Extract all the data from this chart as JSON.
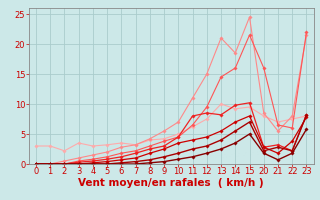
{
  "background_color": "#cce8e8",
  "grid_color": "#aacccc",
  "xlim": [
    -0.5,
    23.5
  ],
  "ylim": [
    0,
    26
  ],
  "xtick_positions": [
    0,
    1,
    2,
    3,
    4,
    5,
    6,
    7,
    8,
    9,
    10,
    11,
    12,
    13,
    14,
    15,
    20,
    21,
    22,
    23
  ],
  "xtick_labels": [
    "0",
    "1",
    "2",
    "3",
    "4",
    "5",
    "6",
    "7",
    "8",
    "9",
    "10",
    "11",
    "12",
    "13",
    "14",
    "15",
    "20",
    "21",
    "22",
    "23"
  ],
  "yticks": [
    0,
    5,
    10,
    15,
    20,
    25
  ],
  "xlabel": "Vent moyen/en rafales  ( km/h )",
  "xlabel_color": "#cc0000",
  "xlabel_fontsize": 7.5,
  "tick_color": "#cc0000",
  "tick_fontsize": 6,
  "lines": [
    {
      "x": [
        0,
        1,
        2,
        3,
        4,
        5,
        6,
        7,
        8,
        9,
        10,
        11,
        12,
        13,
        14,
        15,
        20,
        21,
        22,
        23
      ],
      "y": [
        3.0,
        3.0,
        2.2,
        3.5,
        3.0,
        3.2,
        3.5,
        3.2,
        4.0,
        4.2,
        5.0,
        6.2,
        7.5,
        10.0,
        9.2,
        9.5,
        8.0,
        7.0,
        7.5,
        8.0
      ],
      "color": "#ffaaaa",
      "lw": 0.8,
      "marker": "D",
      "ms": 1.8
    },
    {
      "x": [
        0,
        1,
        2,
        3,
        4,
        5,
        6,
        7,
        8,
        9,
        10,
        11,
        12,
        13,
        14,
        15,
        20,
        21,
        22,
        23
      ],
      "y": [
        0.0,
        0.0,
        0.5,
        1.0,
        1.5,
        2.0,
        2.8,
        3.2,
        4.2,
        5.5,
        7.0,
        11.0,
        15.0,
        21.0,
        18.5,
        24.5,
        8.5,
        5.5,
        8.0,
        21.5
      ],
      "color": "#ff8888",
      "lw": 0.8,
      "marker": "D",
      "ms": 1.8
    },
    {
      "x": [
        0,
        1,
        2,
        3,
        4,
        5,
        6,
        7,
        8,
        9,
        10,
        11,
        12,
        13,
        14,
        15,
        20,
        21,
        22,
        23
      ],
      "y": [
        0.0,
        0.0,
        0.0,
        0.5,
        0.8,
        1.2,
        1.8,
        2.2,
        3.0,
        3.8,
        4.5,
        6.5,
        9.5,
        14.5,
        16.0,
        21.5,
        16.0,
        6.5,
        6.0,
        22.0
      ],
      "color": "#ff5555",
      "lw": 0.8,
      "marker": "D",
      "ms": 1.8
    },
    {
      "x": [
        0,
        1,
        2,
        3,
        4,
        5,
        6,
        7,
        8,
        9,
        10,
        11,
        12,
        13,
        14,
        15,
        20,
        21,
        22,
        23
      ],
      "y": [
        0.0,
        0.0,
        0.0,
        0.3,
        0.5,
        0.8,
        1.2,
        1.8,
        2.5,
        3.0,
        4.5,
        8.0,
        8.5,
        8.2,
        9.8,
        10.2,
        2.8,
        3.2,
        2.2,
        8.2
      ],
      "color": "#ee2222",
      "lw": 0.9,
      "marker": "D",
      "ms": 1.8
    },
    {
      "x": [
        0,
        1,
        2,
        3,
        4,
        5,
        6,
        7,
        8,
        9,
        10,
        11,
        12,
        13,
        14,
        15,
        20,
        21,
        22,
        23
      ],
      "y": [
        0.0,
        0.0,
        0.0,
        0.0,
        0.2,
        0.4,
        0.7,
        1.0,
        1.8,
        2.5,
        3.5,
        4.0,
        4.5,
        5.5,
        7.0,
        8.0,
        2.8,
        1.8,
        3.8,
        7.8
      ],
      "color": "#cc0000",
      "lw": 0.9,
      "marker": "D",
      "ms": 1.8
    },
    {
      "x": [
        0,
        1,
        2,
        3,
        4,
        5,
        6,
        7,
        8,
        9,
        10,
        11,
        12,
        13,
        14,
        15,
        20,
        21,
        22,
        23
      ],
      "y": [
        0.0,
        0.0,
        0.0,
        0.0,
        0.0,
        0.0,
        0.2,
        0.4,
        0.7,
        1.2,
        1.8,
        2.5,
        3.0,
        4.0,
        5.5,
        7.0,
        2.2,
        2.8,
        2.2,
        8.2
      ],
      "color": "#aa0000",
      "lw": 1.0,
      "marker": "D",
      "ms": 1.8
    },
    {
      "x": [
        0,
        1,
        2,
        3,
        4,
        5,
        6,
        7,
        8,
        9,
        10,
        11,
        12,
        13,
        14,
        15,
        20,
        21,
        22,
        23
      ],
      "y": [
        0.0,
        0.0,
        0.0,
        0.0,
        0.0,
        0.0,
        0.0,
        0.0,
        0.2,
        0.4,
        0.8,
        1.2,
        1.8,
        2.5,
        3.5,
        5.0,
        1.8,
        0.7,
        1.8,
        5.8
      ],
      "color": "#880000",
      "lw": 1.0,
      "marker": "D",
      "ms": 1.8
    }
  ]
}
